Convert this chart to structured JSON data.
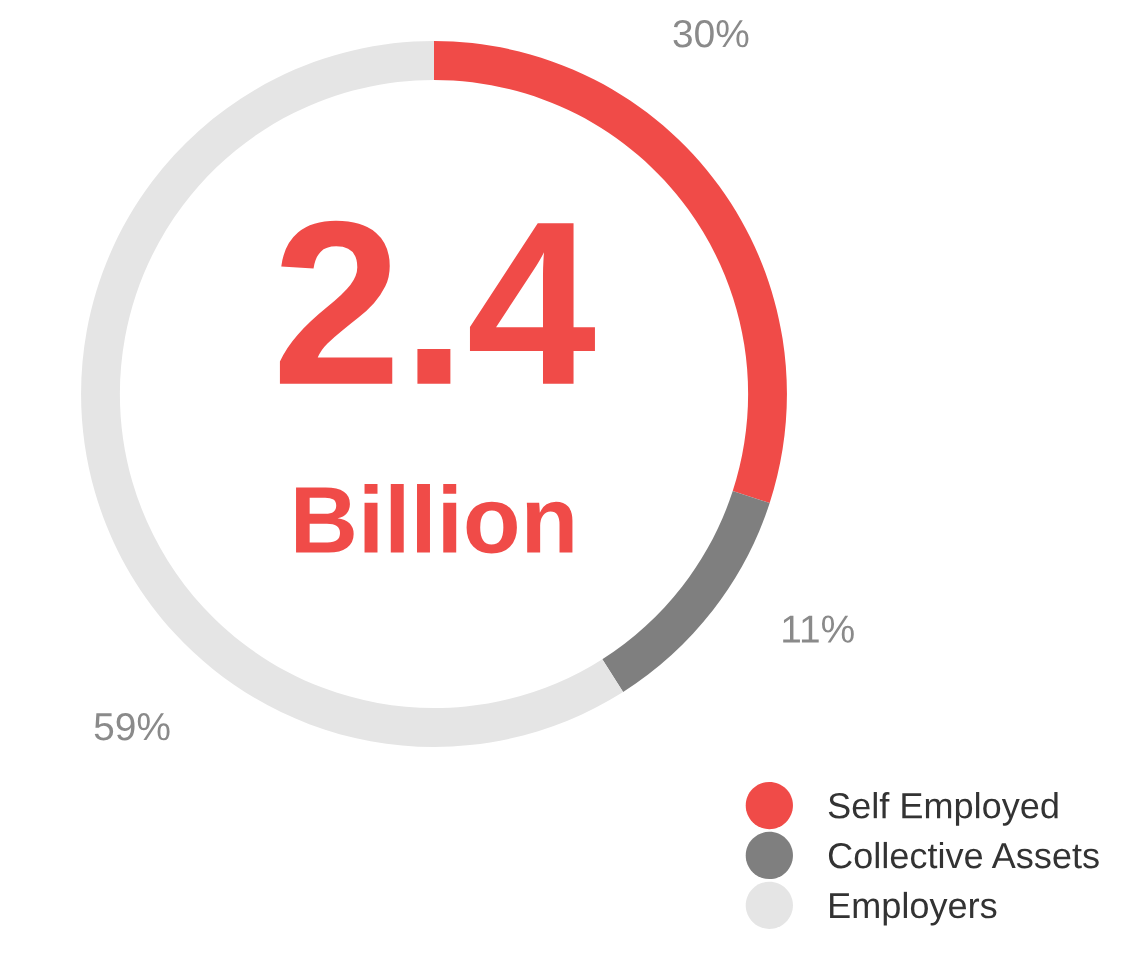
{
  "chart_data": {
    "type": "donut",
    "categories": [
      "Self Employed",
      "Collective Assets",
      "Employers"
    ],
    "values": [
      30,
      11,
      59
    ],
    "colors": [
      "#f04b48",
      "#7f7f7f",
      "#e5e5e5"
    ],
    "value_labels": [
      "30%",
      "11%",
      "59%"
    ],
    "annotations": [
      "2.4",
      "Billion"
    ],
    "legend": "bottom right"
  }
}
